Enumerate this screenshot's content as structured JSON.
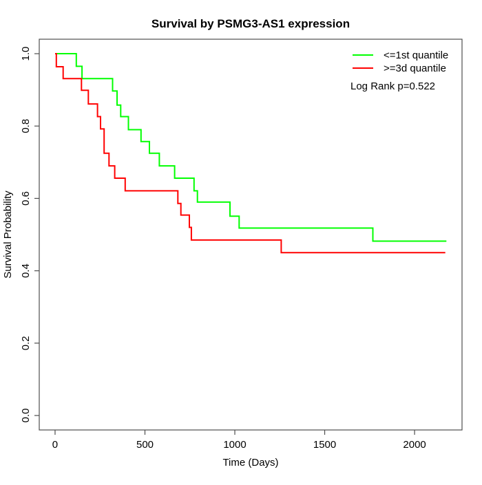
{
  "title": "Survival by PSMG3-AS1 expression",
  "axes": {
    "x": {
      "label": "Time (Days)",
      "tick_labels": [
        "0",
        "500",
        "1000",
        "1500",
        "2000"
      ],
      "tick_values": [
        0,
        500,
        1000,
        1500,
        2000
      ]
    },
    "y": {
      "label": "Survival Probability",
      "tick_labels": [
        "0.0",
        "0.2",
        "0.4",
        "0.6",
        "0.8",
        "1.0"
      ],
      "tick_values": [
        0.0,
        0.2,
        0.4,
        0.6,
        0.8,
        1.0
      ]
    }
  },
  "legend": {
    "items": [
      {
        "label": "<=1st quantile",
        "color": "#00ff00"
      },
      {
        "label": ">=3d quantile",
        "color": "#ff0000"
      }
    ],
    "note": "Log Rank p=0.522"
  },
  "colors": {
    "background": "#ffffff",
    "axis": "#4d4d4d",
    "text": "#000000",
    "group_low": "#00ff00",
    "group_high": "#ff0000"
  },
  "chart_data": {
    "type": "line",
    "subtype": "kaplan-meier-step",
    "title": "Survival by PSMG3-AS1 expression",
    "xlabel": "Time (Days)",
    "ylabel": "Survival Probability",
    "xlim": [
      -88,
      2264
    ],
    "ylim": [
      -0.04,
      1.04
    ],
    "x_ticks": [
      0,
      500,
      1000,
      1500,
      2000
    ],
    "y_ticks": [
      0.0,
      0.2,
      0.4,
      0.6,
      0.8,
      1.0
    ],
    "grid": false,
    "legend_position": "top-right",
    "annotation": "Log Rank p=0.522",
    "series": [
      {
        "name": "<=1st quantile",
        "color": "#00ff00",
        "t_end": 2177,
        "steps": [
          [
            0,
            1.0
          ],
          [
            118,
            0.965
          ],
          [
            150,
            0.931
          ],
          [
            320,
            0.897
          ],
          [
            345,
            0.858
          ],
          [
            365,
            0.826
          ],
          [
            408,
            0.79
          ],
          [
            478,
            0.757
          ],
          [
            525,
            0.725
          ],
          [
            580,
            0.69
          ],
          [
            665,
            0.656
          ],
          [
            773,
            0.621
          ],
          [
            792,
            0.59
          ],
          [
            973,
            0.551
          ],
          [
            1024,
            0.518
          ],
          [
            1768,
            0.482
          ]
        ]
      },
      {
        "name": ">=3d quantile",
        "color": "#ff0000",
        "t_end": 2171,
        "steps": [
          [
            0,
            1.0
          ],
          [
            7,
            0.964
          ],
          [
            45,
            0.931
          ],
          [
            147,
            0.899
          ],
          [
            185,
            0.861
          ],
          [
            236,
            0.826
          ],
          [
            253,
            0.792
          ],
          [
            273,
            0.725
          ],
          [
            300,
            0.69
          ],
          [
            332,
            0.656
          ],
          [
            390,
            0.621
          ],
          [
            683,
            0.586
          ],
          [
            700,
            0.554
          ],
          [
            747,
            0.52
          ],
          [
            758,
            0.485
          ],
          [
            1258,
            0.45
          ]
        ]
      }
    ]
  }
}
